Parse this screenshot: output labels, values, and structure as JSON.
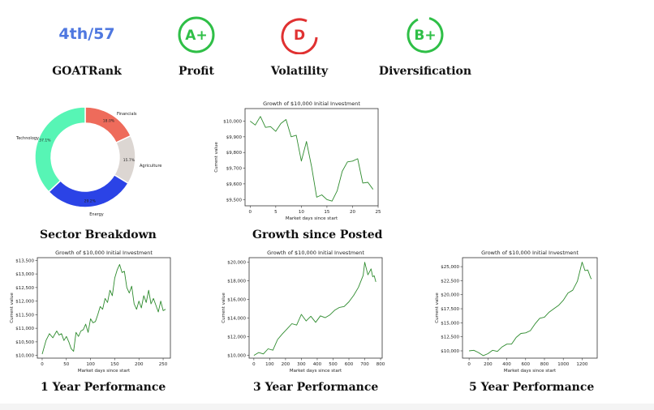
{
  "header": {
    "rank": "4th/57",
    "rank_label": "GOATRank",
    "profit_grade": "A+",
    "profit_label": "Profit",
    "volatility_grade": "D",
    "volatility_label": "Volatility",
    "diversification_grade": "B+",
    "diversification_label": "Diversification",
    "colors": {
      "good": "#2fbf47",
      "bad": "#e03131",
      "rank": "#4f78e0"
    }
  },
  "sections": {
    "sector": "Sector Breakdown",
    "growth_posted": "Growth since Posted",
    "one_year": "1 Year Performance",
    "three_year": "3 Year Performance",
    "five_year": "5 Year Performance"
  },
  "chart_data": [
    {
      "type": "pie",
      "title": "Sector Breakdown",
      "labels": [
        "Financials",
        "Agriculture",
        "Energy",
        "Technology"
      ],
      "values": [
        18.0,
        15.7,
        29.2,
        37.1
      ],
      "value_labels": [
        "18.0%",
        "15.7%",
        "29.2%",
        "37.1%"
      ],
      "colors": [
        "#ee6b5b",
        "#dcd6d2",
        "#2b43e6",
        "#57f5b5"
      ]
    },
    {
      "type": "line",
      "title": "Growth of $10,000 Initial Investment",
      "xlabel": "Market days since start",
      "ylabel": "Current value",
      "xlim": [
        -1,
        25
      ],
      "ylim": [
        9460,
        10080
      ],
      "xticks": [
        0,
        5,
        10,
        15,
        20,
        25
      ],
      "yticks": [
        9500,
        9600,
        9700,
        9800,
        9900,
        10000
      ],
      "ytick_labels": [
        "$9,500",
        "$9,600",
        "$9,700",
        "$9,800",
        "$9,900",
        "$10,000"
      ],
      "x": [
        0,
        1,
        2,
        3,
        4,
        5,
        6,
        7,
        8,
        9,
        10,
        11,
        12,
        13,
        14,
        15,
        16,
        17,
        18,
        19,
        20,
        21,
        22,
        23,
        24
      ],
      "y": [
        10000,
        9975,
        10030,
        9960,
        9965,
        9935,
        9985,
        10010,
        9900,
        9910,
        9745,
        9870,
        9710,
        9515,
        9530,
        9500,
        9490,
        9555,
        9680,
        9740,
        9745,
        9760,
        9605,
        9610,
        9565
      ]
    },
    {
      "type": "line",
      "title": "Growth of $10,000 Initial Investment",
      "xlabel": "Market days since start",
      "ylabel": "Current value",
      "xlim": [
        -10,
        265
      ],
      "ylim": [
        9900,
        13600
      ],
      "xticks": [
        0,
        50,
        100,
        150,
        200,
        250
      ],
      "yticks": [
        10000,
        10500,
        11000,
        11500,
        12000,
        12500,
        13000,
        13500
      ],
      "ytick_labels": [
        "$10,000",
        "$10,500",
        "$11,000",
        "$11,500",
        "$12,000",
        "$12,500",
        "$13,000",
        "$13,500"
      ],
      "x": [
        0,
        8,
        15,
        22,
        30,
        35,
        40,
        45,
        50,
        55,
        60,
        65,
        70,
        75,
        80,
        85,
        90,
        95,
        100,
        105,
        110,
        115,
        120,
        125,
        130,
        135,
        140,
        145,
        150,
        155,
        160,
        165,
        170,
        175,
        180,
        185,
        190,
        195,
        200,
        205,
        210,
        215,
        220,
        225,
        230,
        235,
        240,
        245,
        250,
        255
      ],
      "y": [
        10050,
        10550,
        10800,
        10650,
        10900,
        10750,
        10800,
        10550,
        10700,
        10500,
        10250,
        10150,
        10850,
        10700,
        10900,
        10950,
        11150,
        10850,
        11350,
        11200,
        11250,
        11500,
        11800,
        11700,
        12100,
        11950,
        12400,
        12200,
        12850,
        13150,
        13350,
        13050,
        13100,
        12500,
        12300,
        12550,
        11900,
        11700,
        12000,
        11750,
        12200,
        11950,
        12400,
        11900,
        12100,
        11850,
        11600,
        12000,
        11650,
        11700
      ]
    },
    {
      "type": "line",
      "title": "Growth of $10,000 Initial Investment",
      "xlabel": "Market days since start",
      "ylabel": "Current value",
      "xlim": [
        -30,
        810
      ],
      "ylim": [
        9700,
        20500
      ],
      "xticks": [
        0,
        100,
        200,
        300,
        400,
        500,
        600,
        700,
        800
      ],
      "yticks": [
        10000,
        12000,
        14000,
        16000,
        18000,
        20000
      ],
      "ytick_labels": [
        "$10,000",
        "$12,000",
        "$14,000",
        "$16,000",
        "$18,000",
        "$20,000"
      ],
      "x": [
        0,
        30,
        60,
        90,
        120,
        150,
        180,
        210,
        240,
        270,
        300,
        330,
        360,
        390,
        420,
        450,
        480,
        510,
        540,
        570,
        600,
        630,
        660,
        690,
        700,
        720,
        740,
        750,
        760,
        770
      ],
      "y": [
        10000,
        10300,
        10150,
        10700,
        10550,
        11700,
        12300,
        12850,
        13400,
        13250,
        14400,
        13700,
        14200,
        13550,
        14250,
        14050,
        14350,
        14850,
        15150,
        15250,
        15750,
        16450,
        17300,
        18600,
        20000,
        18650,
        19300,
        18450,
        18550,
        17900
      ]
    },
    {
      "type": "line",
      "title": "Growth of $10,000 Initial Investment",
      "xlabel": "Market days since start",
      "ylabel": "Current value",
      "xlim": [
        -70,
        1360
      ],
      "ylim": [
        8700,
        26600
      ],
      "xticks": [
        0,
        200,
        400,
        600,
        800,
        1000,
        1200
      ],
      "yticks": [
        10000,
        12500,
        15000,
        17500,
        20000,
        22500,
        25000
      ],
      "ytick_labels": [
        "$10,000",
        "$12,500",
        "$15,000",
        "$17,500",
        "$20,000",
        "$22,500",
        "$25,000"
      ],
      "x": [
        0,
        50,
        100,
        150,
        200,
        250,
        300,
        350,
        400,
        450,
        500,
        550,
        600,
        650,
        700,
        750,
        800,
        850,
        900,
        950,
        1000,
        1050,
        1100,
        1150,
        1200,
        1230,
        1260,
        1290,
        1300
      ],
      "y": [
        10000,
        10100,
        9700,
        9150,
        9500,
        10100,
        9900,
        10700,
        11200,
        11200,
        12400,
        13100,
        13200,
        13600,
        14800,
        15800,
        16000,
        16900,
        17500,
        18100,
        19000,
        20300,
        20800,
        22400,
        25800,
        24300,
        24400,
        23000,
        22800
      ]
    }
  ]
}
